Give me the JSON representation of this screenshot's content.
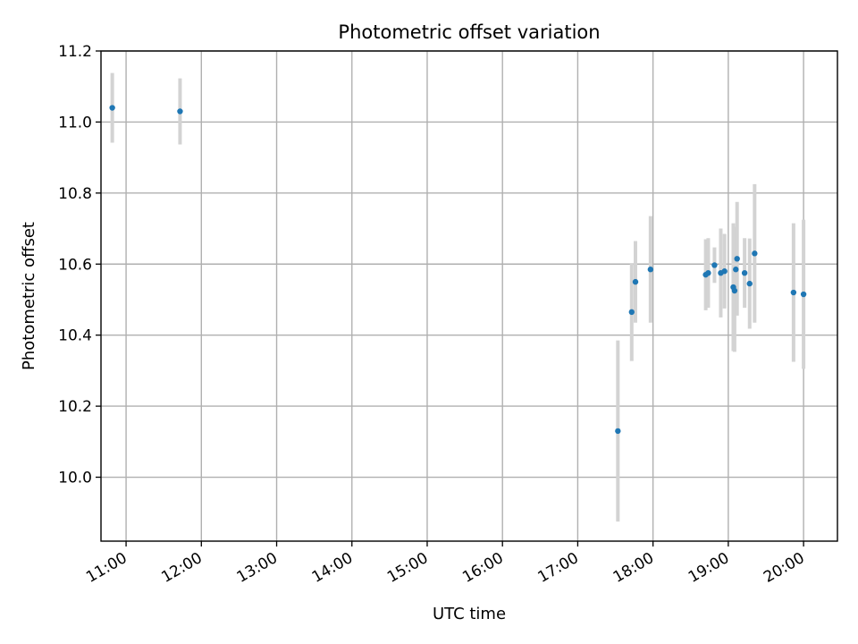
{
  "chart_data": {
    "type": "scatter",
    "title": "Photometric offset variation",
    "xlabel": "UTC time",
    "ylabel": "Photometric offset",
    "x_range": [
      "10:40",
      "20:27"
    ],
    "y_range": [
      9.82,
      11.2
    ],
    "x_ticks": [
      "11:00",
      "12:00",
      "13:00",
      "14:00",
      "15:00",
      "16:00",
      "17:00",
      "18:00",
      "19:00",
      "20:00"
    ],
    "y_ticks": [
      "10.0",
      "10.2",
      "10.4",
      "10.6",
      "10.8",
      "11.0",
      "11.2"
    ],
    "grid": true,
    "point_color": "#1f77b4",
    "errorbar_color": "#d3d3d3",
    "points": [
      {
        "time": "10:49",
        "value": 11.04,
        "error": 0.098
      },
      {
        "time": "11:43",
        "value": 11.03,
        "error": 0.093
      },
      {
        "time": "17:32",
        "value": 10.13,
        "error": 0.255
      },
      {
        "time": "17:43",
        "value": 10.465,
        "error": 0.138
      },
      {
        "time": "17:46",
        "value": 10.55,
        "error": 0.115
      },
      {
        "time": "17:58",
        "value": 10.585,
        "error": 0.15
      },
      {
        "time": "18:42",
        "value": 10.57,
        "error": 0.1
      },
      {
        "time": "18:44",
        "value": 10.575,
        "error": 0.098
      },
      {
        "time": "18:49",
        "value": 10.597,
        "error": 0.05
      },
      {
        "time": "18:54",
        "value": 10.575,
        "error": 0.125
      },
      {
        "time": "18:57",
        "value": 10.58,
        "error": 0.105
      },
      {
        "time": "19:04",
        "value": 10.535,
        "error": 0.18
      },
      {
        "time": "19:05",
        "value": 10.525,
        "error": 0.172
      },
      {
        "time": "19:06",
        "value": 10.585,
        "error": 0.12
      },
      {
        "time": "19:07",
        "value": 10.615,
        "error": 0.16
      },
      {
        "time": "19:13",
        "value": 10.575,
        "error": 0.098
      },
      {
        "time": "19:17",
        "value": 10.545,
        "error": 0.127
      },
      {
        "time": "19:21",
        "value": 10.63,
        "error": 0.195
      },
      {
        "time": "19:52",
        "value": 10.52,
        "error": 0.195
      },
      {
        "time": "20:00",
        "value": 10.515,
        "error": 0.21
      }
    ]
  }
}
